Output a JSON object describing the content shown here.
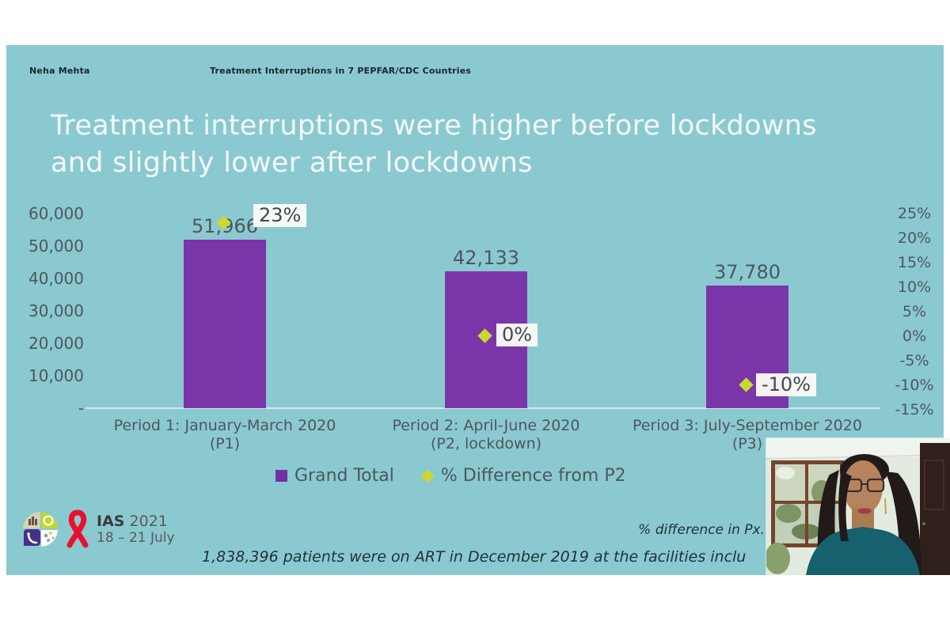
{
  "header": {
    "speaker_name": "Neha Mehta",
    "session_title": "Treatment Interruptions in 7 PEPFAR/CDC Countries"
  },
  "slide": {
    "title_line1": "Treatment interruptions were higher before lockdowns",
    "title_line2": "and slightly lower after lockdowns"
  },
  "chart_data": {
    "type": "bar",
    "title": "Treatment interruptions were higher before lockdowns and slightly lower after lockdowns",
    "categories": [
      "Period 1: January-March 2020 (P1)",
      "Period 2: April-June 2020 (P2, lockdown)",
      "Period 3: July-September 2020 (P3)"
    ],
    "series": [
      {
        "name": "Grand Total",
        "type": "bar",
        "axis": "left",
        "color": "#7a35a8",
        "values": [
          51966,
          42133,
          37780
        ]
      },
      {
        "name": "% Difference from P2",
        "type": "scatter",
        "axis": "right",
        "color": "#ccd830",
        "values": [
          23,
          0,
          -10
        ]
      }
    ],
    "value_labels": [
      "51,966",
      "42,133",
      "37,780"
    ],
    "pct_labels": [
      "23%",
      "0%",
      "-10%"
    ],
    "left_axis": {
      "ticks": [
        "60,000",
        "50,000",
        "40,000",
        "30,000",
        "20,000",
        "10,000",
        "-"
      ],
      "min": 0,
      "max": 60000
    },
    "right_axis": {
      "ticks": [
        "25%",
        "20%",
        "15%",
        "10%",
        "5%",
        "0%",
        "-5%",
        "-10%",
        "-15%"
      ],
      "min": -15,
      "max": 25
    },
    "legend_position": "bottom",
    "grid": false
  },
  "xlabels": [
    {
      "line1": "Period 1: January-March 2020",
      "line2": "(P1)"
    },
    {
      "line1": "Period 2: April-June 2020",
      "line2": "(P2, lockdown)"
    },
    {
      "line1": "Period 3: July-September 2020",
      "line2": "(P3)"
    }
  ],
  "legend": {
    "grand_total": "Grand Total",
    "pct_difference": "% Difference from P2"
  },
  "footer": {
    "logo_brand": "IAS",
    "logo_year": "2021",
    "logo_dates": "18 – 21 July",
    "note_right": "% difference in Px.",
    "note_bottom": "1,838,396 patients were on ART in December 2019 at the facilities inclu"
  },
  "colors": {
    "slide_background": "#8bc9d1",
    "bar_purple": "#7a35a8",
    "marker_green": "#ccd830",
    "axis_text": "#4d575b",
    "title_text": "#f3fafa",
    "ribbon_red": "#e8112d"
  }
}
